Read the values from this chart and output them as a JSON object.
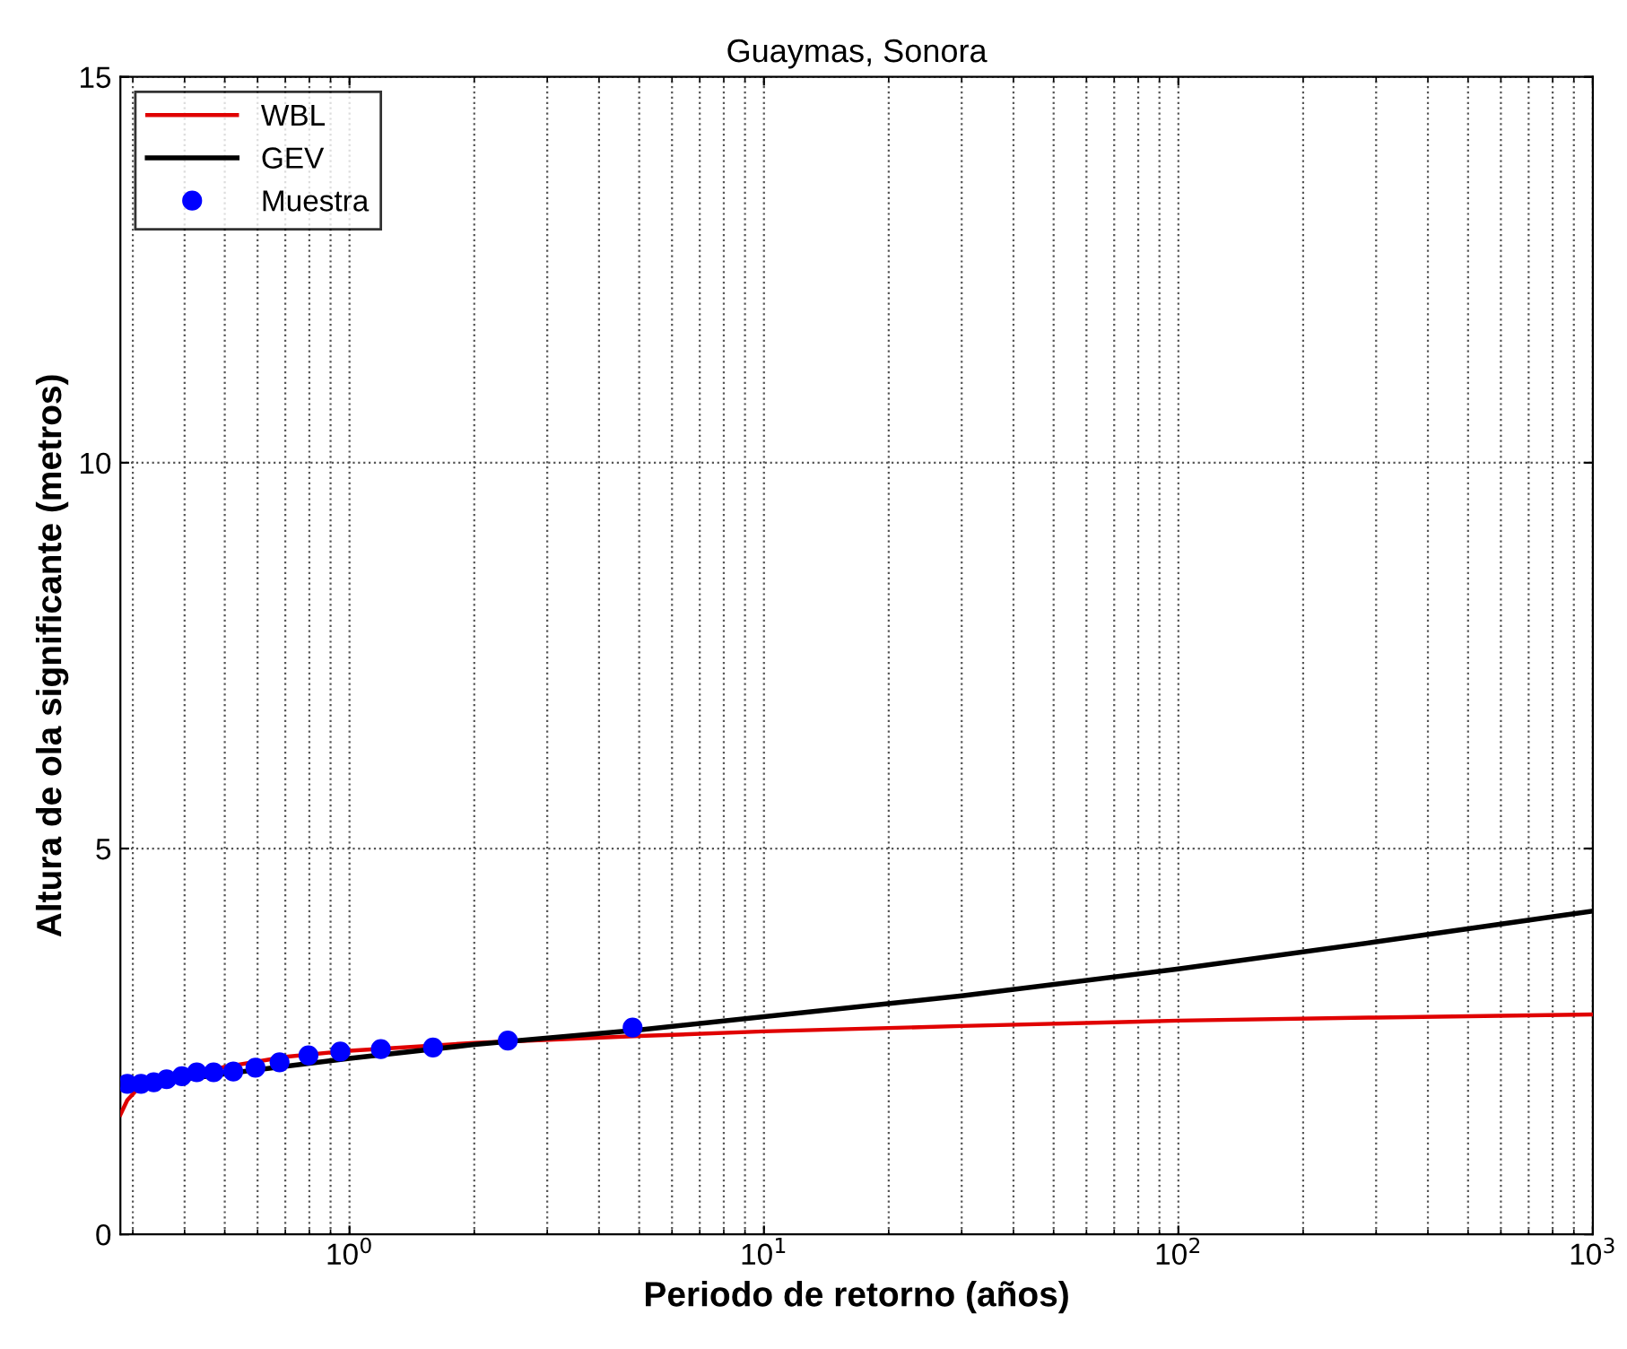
{
  "chart_data": {
    "type": "line",
    "title": "Guaymas, Sonora",
    "xlabel": "Periodo de retorno (años)",
    "ylabel": "Altura de ola significante (metros)",
    "log": "x",
    "grid": true,
    "legend": "top left",
    "xlim": [
      0.28,
      1000
    ],
    "ylim": [
      0,
      15
    ],
    "xticks": [
      {
        "value": 1,
        "label": "10$^{0}$"
      },
      {
        "value": 10,
        "label": "10$^{1}$"
      },
      {
        "value": 100,
        "label": "10$^{2}$"
      },
      {
        "value": 1000,
        "label": "10$^{3}$"
      }
    ],
    "yticks": [
      0,
      5,
      10,
      15
    ],
    "series": [
      {
        "name": "WBL",
        "color": "#e00000",
        "line_style": "solid",
        "x": [
          0.28,
          0.291,
          0.31,
          0.5,
          0.7,
          1,
          2,
          5,
          10,
          30,
          100,
          300,
          1000
        ],
        "values": [
          1.55,
          1.74,
          1.9,
          2.17,
          2.3,
          2.38,
          2.48,
          2.57,
          2.63,
          2.7,
          2.77,
          2.81,
          2.85
        ]
      },
      {
        "name": "GEV",
        "color": "#000000",
        "line_style": "solid",
        "x": [
          0.28,
          0.5,
          1,
          2,
          5,
          10,
          30,
          100,
          300,
          1000
        ],
        "values": [
          1.9,
          2.08,
          2.28,
          2.46,
          2.65,
          2.82,
          3.09,
          3.44,
          3.79,
          4.19
        ]
      },
      {
        "name": "Muestra",
        "type": "scatter",
        "color": "#0000ff",
        "marker": "circle",
        "x": [
          0.291,
          0.314,
          0.337,
          0.362,
          0.394,
          0.428,
          0.47,
          0.524,
          0.593,
          0.678,
          0.796,
          0.95,
          1.19,
          1.59,
          2.41,
          4.82
        ],
        "values": [
          1.95,
          1.95,
          1.97,
          2.01,
          2.05,
          2.1,
          2.1,
          2.11,
          2.16,
          2.23,
          2.32,
          2.37,
          2.4,
          2.42,
          2.51,
          2.68
        ]
      }
    ]
  }
}
